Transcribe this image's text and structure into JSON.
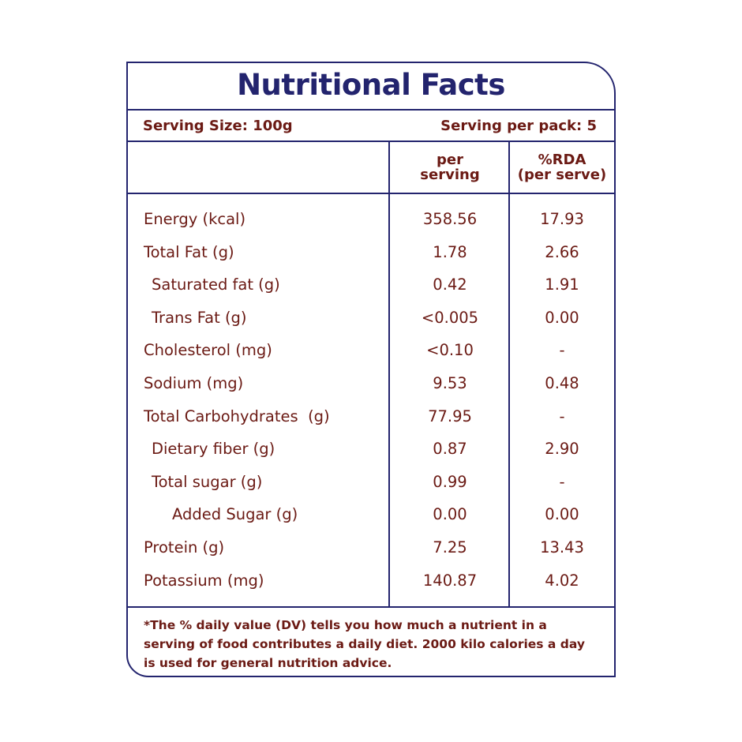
{
  "title": "Nutritional Facts",
  "serving_size": "Serving Size: 100g",
  "serving_per_pack": "Serving per pack: 5",
  "columns": {
    "per_serving": [
      "per",
      "serving"
    ],
    "rda": [
      "%RDA",
      "(per serve)"
    ]
  },
  "rows": [
    {
      "label": "Energy (kcal)",
      "indent": 0,
      "per_serving": "358.56",
      "rda": "17.93"
    },
    {
      "label": "Total Fat (g)",
      "indent": 0,
      "per_serving": "1.78",
      "rda": "2.66"
    },
    {
      "label": "Saturated fat (g)",
      "indent": 1,
      "per_serving": "0.42",
      "rda": "1.91"
    },
    {
      "label": "Trans Fat (g)",
      "indent": 1,
      "per_serving": "<0.005",
      "rda": "0.00"
    },
    {
      "label": "Cholesterol (mg)",
      "indent": 0,
      "per_serving": "<0.10",
      "rda": "-"
    },
    {
      "label": "Sodium (mg)",
      "indent": 0,
      "per_serving": "9.53",
      "rda": "0.48"
    },
    {
      "label": "Total Carbohydrates  (g)",
      "indent": 0,
      "per_serving": "77.95",
      "rda": "-"
    },
    {
      "label": "Dietary fiber (g)",
      "indent": 1,
      "per_serving": "0.87",
      "rda": "2.90"
    },
    {
      "label": "Total sugar (g)",
      "indent": 1,
      "per_serving": "0.99",
      "rda": "-"
    },
    {
      "label": "Added Sugar (g)",
      "indent": 2,
      "per_serving": "0.00",
      "rda": "0.00"
    },
    {
      "label": "Protein (g)",
      "indent": 0,
      "per_serving": "7.25",
      "rda": "13.43"
    },
    {
      "label": "Potassium (mg)",
      "indent": 0,
      "per_serving": "140.87",
      "rda": "4.02"
    }
  ],
  "footnote": "*The % daily value (DV) tells you how much a nutrient in a serving of food contributes a daily diet. 2000 kilo calories a day is used for general nutrition advice.",
  "colors": {
    "border": "#23246e",
    "text": "#6b1a14"
  }
}
